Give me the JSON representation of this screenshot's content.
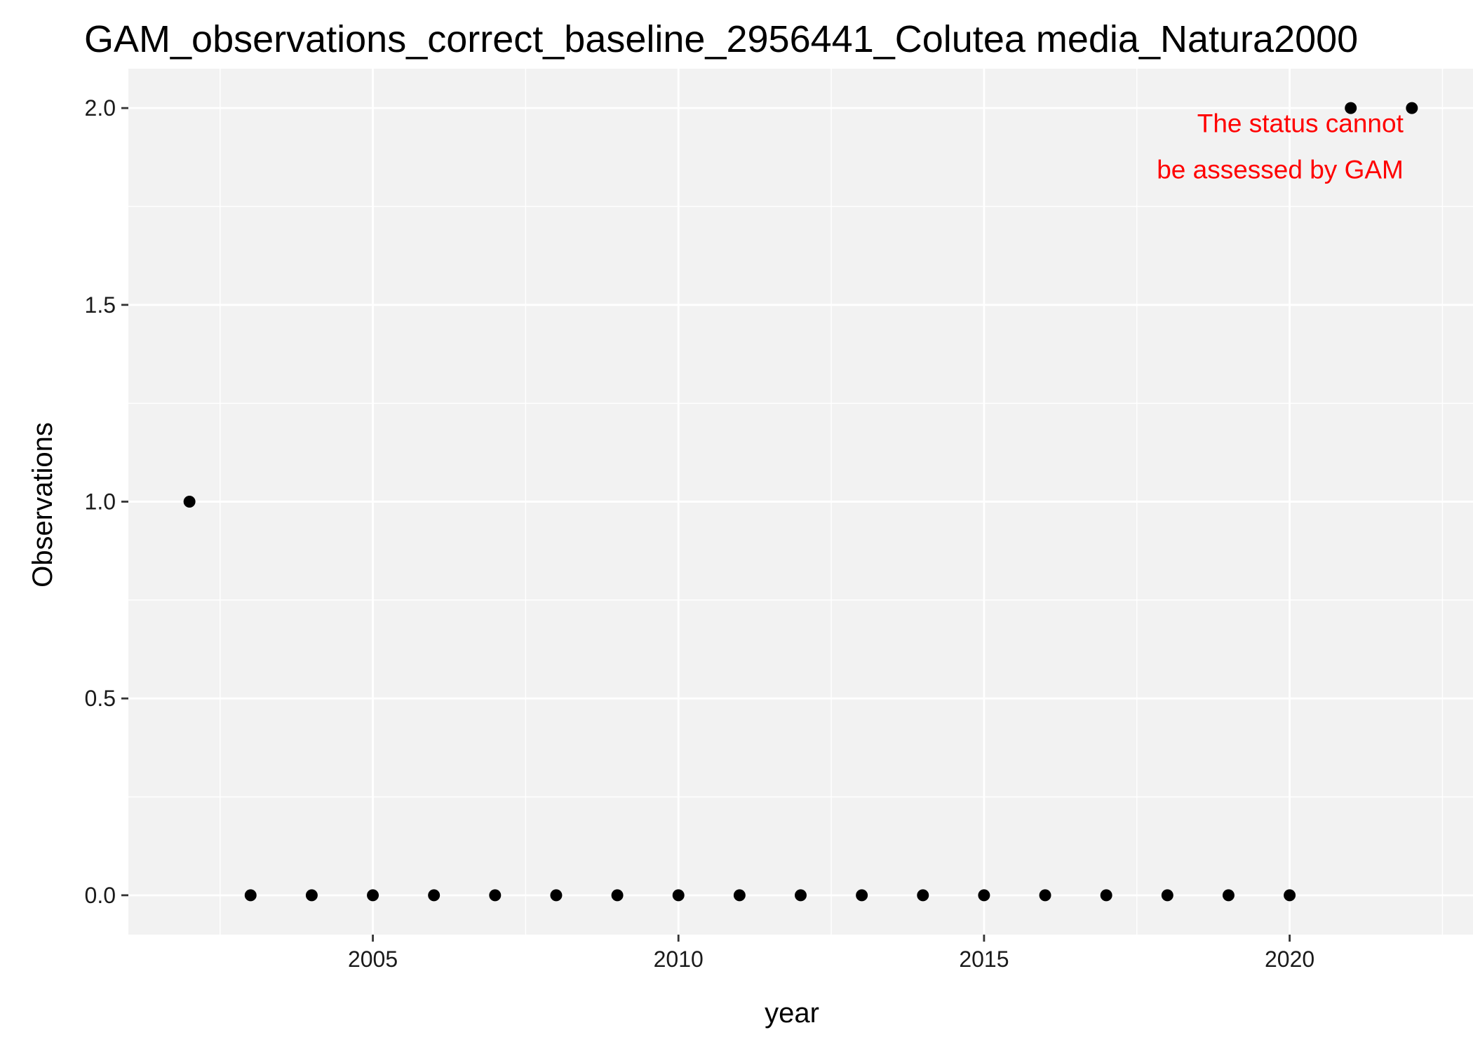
{
  "chart_data": {
    "type": "scatter",
    "title": "GAM_observations_correct_baseline_2956441_Colutea media_Natura2000",
    "xlabel": "year",
    "ylabel": "Observations",
    "xlim": [
      2001,
      2023
    ],
    "ylim": [
      -0.1,
      2.1
    ],
    "x_ticks": [
      2005,
      2010,
      2015,
      2020
    ],
    "x_tick_labels": [
      "2005",
      "2010",
      "2015",
      "2020"
    ],
    "y_ticks": [
      0.0,
      0.5,
      1.0,
      1.5,
      2.0
    ],
    "y_tick_labels": [
      "0.0",
      "0.5",
      "1.0",
      "1.5",
      "2.0"
    ],
    "grid": true,
    "points": [
      {
        "x": 2002,
        "y": 1
      },
      {
        "x": 2003,
        "y": 0
      },
      {
        "x": 2004,
        "y": 0
      },
      {
        "x": 2005,
        "y": 0
      },
      {
        "x": 2006,
        "y": 0
      },
      {
        "x": 2007,
        "y": 0
      },
      {
        "x": 2008,
        "y": 0
      },
      {
        "x": 2009,
        "y": 0
      },
      {
        "x": 2010,
        "y": 0
      },
      {
        "x": 2011,
        "y": 0
      },
      {
        "x": 2012,
        "y": 0
      },
      {
        "x": 2013,
        "y": 0
      },
      {
        "x": 2014,
        "y": 0
      },
      {
        "x": 2015,
        "y": 0
      },
      {
        "x": 2016,
        "y": 0
      },
      {
        "x": 2017,
        "y": 0
      },
      {
        "x": 2018,
        "y": 0
      },
      {
        "x": 2019,
        "y": 0
      },
      {
        "x": 2020,
        "y": 0
      },
      {
        "x": 2021,
        "y": 2
      },
      {
        "x": 2022,
        "y": 2
      }
    ],
    "annotation": {
      "lines": [
        "The status cannot",
        "be assessed by GAM"
      ],
      "color": "#ff0000",
      "x": 2022,
      "y": 1.9
    },
    "colors": {
      "panel_background": "#f2f2f2",
      "grid_line": "#ffffff",
      "point": "#000000"
    }
  }
}
